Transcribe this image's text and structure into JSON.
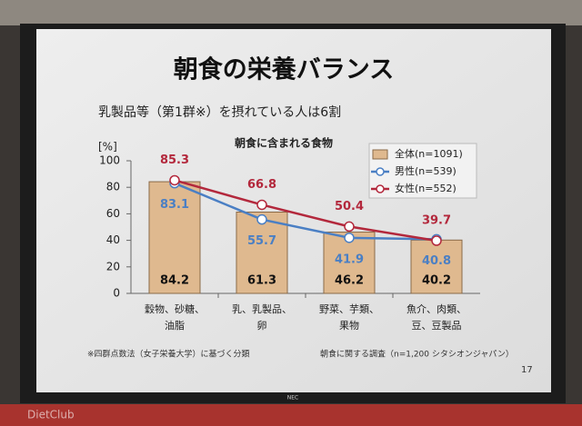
{
  "slide": {
    "title": "朝食の栄養バランス",
    "subtitle": "乳製品等（第1群※）を摂れている人は6割",
    "footnote": "※四群点数法（女子栄養大学）に基づく分類",
    "source": "朝食に関する調査（n=1,200 シタシオンジャパン）",
    "page_number": "17",
    "projector_brand": "NEC",
    "watermark": "DietClub"
  },
  "chart_data": {
    "type": "bar",
    "title": "朝食に含まれる食物",
    "y_label": "[%]",
    "categories": [
      [
        "穀物、砂糖、",
        "油脂"
      ],
      [
        "乳、乳製品、",
        "卵"
      ],
      [
        "野菜、芋類、",
        "果物"
      ],
      [
        "魚介、肉類、",
        "豆、豆製品"
      ]
    ],
    "series": [
      {
        "name": "全体(n=1091)",
        "type": "bar",
        "color": "#dfb98f",
        "label_position": "bottom",
        "values": [
          84.2,
          61.3,
          46.2,
          40.2
        ]
      },
      {
        "name": "男性(n=539)",
        "type": "line",
        "color": "#4a7fc4",
        "label_position": "below",
        "values": [
          83.1,
          55.7,
          41.9,
          40.8
        ]
      },
      {
        "name": "女性(n=552)",
        "type": "line",
        "color": "#b3283c",
        "label_position": "above",
        "values": [
          85.3,
          66.8,
          50.4,
          39.7
        ]
      }
    ],
    "ylim": [
      0,
      100
    ],
    "yticks": [
      0,
      20,
      40,
      60,
      80,
      100
    ],
    "legend": "top-right"
  }
}
